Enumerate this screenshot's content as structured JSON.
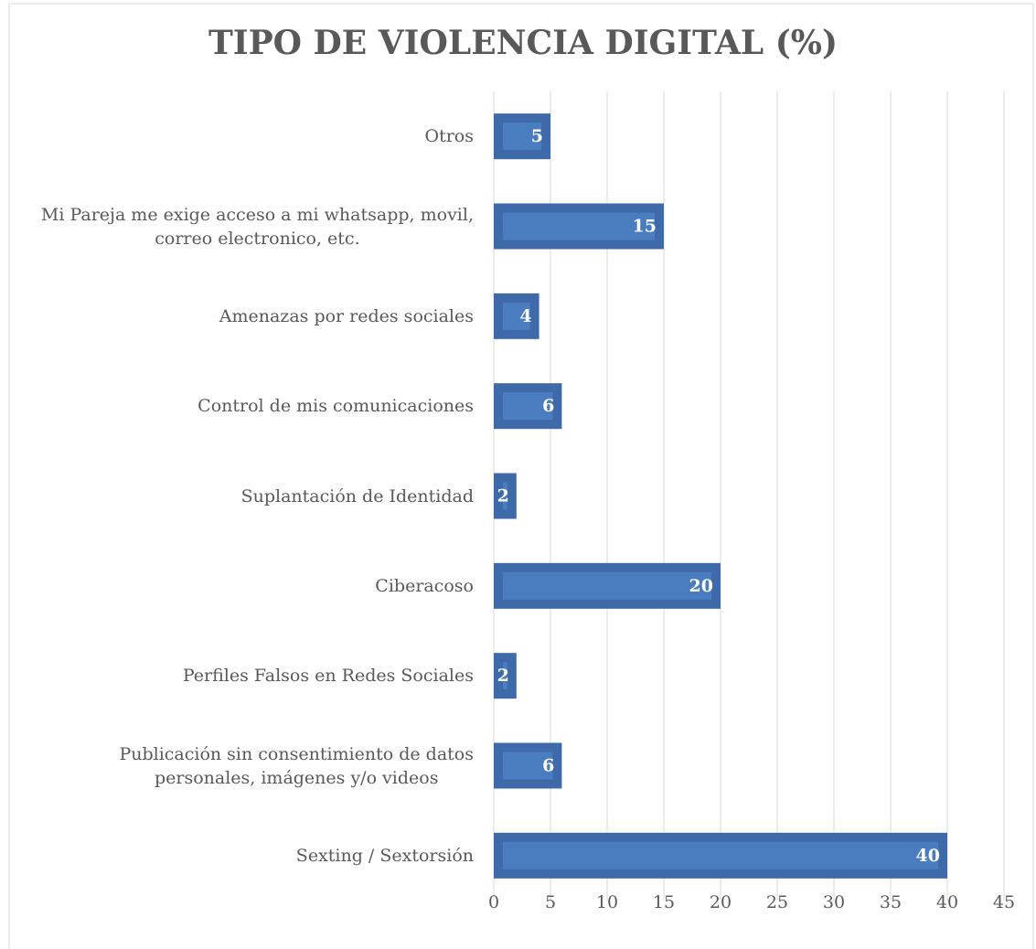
{
  "chart_data": {
    "type": "barh",
    "title": "TIPO DE VIOLENCIA DIGITAL (%)",
    "categories": [
      "Otros",
      "Mi Pareja me exige acceso a mi whatsapp, movil,\ncorreo electronico, etc.",
      "Amenazas por redes sociales",
      "Control de mis comunicaciones",
      "Suplantación de Identidad",
      "Ciberacoso",
      "Perfiles Falsos en Redes Sociales",
      "Publicación sin consentimiento de datos\npersonales, imágenes y/o videos",
      "Sexting / Sextorsión"
    ],
    "values": [
      5,
      15,
      4,
      6,
      2,
      20,
      2,
      6,
      40
    ],
    "color": "#4a7cc0",
    "xlim": [
      0,
      45
    ],
    "xticks": [
      0,
      5,
      10,
      15,
      20,
      25,
      30,
      35,
      40,
      45
    ],
    "grid": true
  }
}
